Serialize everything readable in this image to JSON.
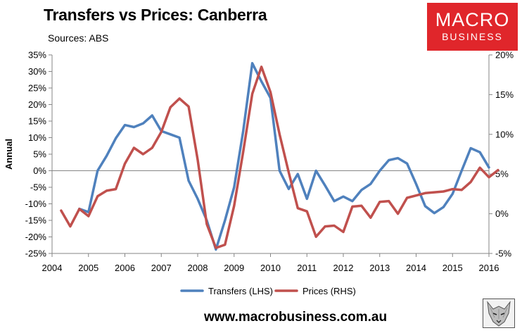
{
  "header": {
    "title": "Transfers vs Prices: Canberra",
    "subtitle": "Sources: ABS"
  },
  "logo": {
    "line1": "MACRO",
    "line2": "BUSINESS",
    "color": "#e0262b"
  },
  "footer": {
    "website": "www.macrobusiness.com.au",
    "badge_icon": "wolf-head-icon"
  },
  "chart_data": {
    "type": "line",
    "title": "Transfers vs Prices: Canberra",
    "ylabel": "Annual",
    "y2label": "",
    "xlim": [
      2004,
      2016
    ],
    "ylim": [
      -0.25,
      0.35
    ],
    "y2lim": [
      -0.05,
      0.2
    ],
    "x_ticks": [
      "2004",
      "2005",
      "2006",
      "2007",
      "2008",
      "2009",
      "2010",
      "2011",
      "2012",
      "2013",
      "2014",
      "2015",
      "2016"
    ],
    "y_ticks": [
      "35%",
      "30%",
      "25%",
      "20%",
      "15%",
      "10%",
      "5%",
      "0%",
      "-5%",
      "-10%",
      "-15%",
      "-20%",
      "-25%"
    ],
    "y2_ticks": [
      "20%",
      "15%",
      "10%",
      "5%",
      "0%",
      "-5%"
    ],
    "legend_position": "bottom",
    "grid": false,
    "series": [
      {
        "name": "Transfers (LHS)",
        "axis": "left",
        "color": "#4f81bd",
        "points": [
          [
            "2004-10",
            -0.115
          ],
          [
            "2005-01",
            -0.125
          ],
          [
            "2005-04",
            0.0
          ],
          [
            "2005-07",
            0.045
          ],
          [
            "2005-10",
            0.098
          ],
          [
            "2006-01",
            0.138
          ],
          [
            "2006-04",
            0.132
          ],
          [
            "2006-07",
            0.143
          ],
          [
            "2006-10",
            0.167
          ],
          [
            "2007-01",
            0.12
          ],
          [
            "2007-04",
            0.11
          ],
          [
            "2007-07",
            0.1
          ],
          [
            "2007-10",
            -0.03
          ],
          [
            "2008-01",
            -0.085
          ],
          [
            "2008-04",
            -0.15
          ],
          [
            "2008-07",
            -0.238
          ],
          [
            "2008-10",
            -0.15
          ],
          [
            "2009-01",
            -0.05
          ],
          [
            "2009-04",
            0.12
          ],
          [
            "2009-07",
            0.325
          ],
          [
            "2009-10",
            0.27
          ],
          [
            "2010-01",
            0.22
          ],
          [
            "2010-04",
            0.0
          ],
          [
            "2010-07",
            -0.055
          ],
          [
            "2010-10",
            -0.01
          ],
          [
            "2011-01",
            -0.085
          ],
          [
            "2011-04",
            0.0
          ],
          [
            "2011-07",
            -0.045
          ],
          [
            "2011-10",
            -0.092
          ],
          [
            "2012-01",
            -0.078
          ],
          [
            "2012-04",
            -0.092
          ],
          [
            "2012-07",
            -0.058
          ],
          [
            "2012-10",
            -0.04
          ],
          [
            "2013-01",
            0.0
          ],
          [
            "2013-04",
            0.032
          ],
          [
            "2013-07",
            0.038
          ],
          [
            "2013-10",
            0.022
          ],
          [
            "2014-01",
            -0.04
          ],
          [
            "2014-04",
            -0.107
          ],
          [
            "2014-07",
            -0.128
          ],
          [
            "2014-10",
            -0.11
          ],
          [
            "2015-01",
            -0.07
          ],
          [
            "2015-04",
            0.0
          ],
          [
            "2015-07",
            0.068
          ],
          [
            "2015-10",
            0.056
          ],
          [
            "2016-01",
            0.01
          ]
        ]
      },
      {
        "name": "Prices (RHS)",
        "axis": "right",
        "color": "#c0504d",
        "points": [
          [
            "2004-04",
            0.004
          ],
          [
            "2004-07",
            -0.016
          ],
          [
            "2004-10",
            0.006
          ],
          [
            "2005-01",
            -0.003
          ],
          [
            "2005-04",
            0.022
          ],
          [
            "2005-07",
            0.029
          ],
          [
            "2005-10",
            0.031
          ],
          [
            "2006-01",
            0.063
          ],
          [
            "2006-04",
            0.083
          ],
          [
            "2006-07",
            0.075
          ],
          [
            "2006-10",
            0.083
          ],
          [
            "2007-01",
            0.103
          ],
          [
            "2007-04",
            0.134
          ],
          [
            "2007-07",
            0.145
          ],
          [
            "2007-10",
            0.135
          ],
          [
            "2008-01",
            0.068
          ],
          [
            "2008-04",
            -0.013
          ],
          [
            "2008-07",
            -0.043
          ],
          [
            "2008-10",
            -0.039
          ],
          [
            "2009-01",
            0.01
          ],
          [
            "2009-04",
            0.078
          ],
          [
            "2009-07",
            0.151
          ],
          [
            "2009-10",
            0.185
          ],
          [
            "2010-01",
            0.153
          ],
          [
            "2010-04",
            0.1
          ],
          [
            "2010-07",
            0.052
          ],
          [
            "2010-10",
            0.007
          ],
          [
            "2011-01",
            0.003
          ],
          [
            "2011-04",
            -0.029
          ],
          [
            "2011-07",
            -0.016
          ],
          [
            "2011-10",
            -0.015
          ],
          [
            "2012-01",
            -0.023
          ],
          [
            "2012-04",
            0.009
          ],
          [
            "2012-07",
            0.01
          ],
          [
            "2012-10",
            -0.005
          ],
          [
            "2013-01",
            0.015
          ],
          [
            "2013-04",
            0.016
          ],
          [
            "2013-07",
            0.0
          ],
          [
            "2013-10",
            0.02
          ],
          [
            "2014-01",
            0.023
          ],
          [
            "2014-04",
            0.026
          ],
          [
            "2014-07",
            0.027
          ],
          [
            "2014-10",
            0.028
          ],
          [
            "2015-01",
            0.031
          ],
          [
            "2015-04",
            0.03
          ],
          [
            "2015-07",
            0.04
          ],
          [
            "2015-10",
            0.058
          ],
          [
            "2016-01",
            0.046
          ],
          [
            "2016-04",
            0.055
          ]
        ]
      }
    ]
  }
}
